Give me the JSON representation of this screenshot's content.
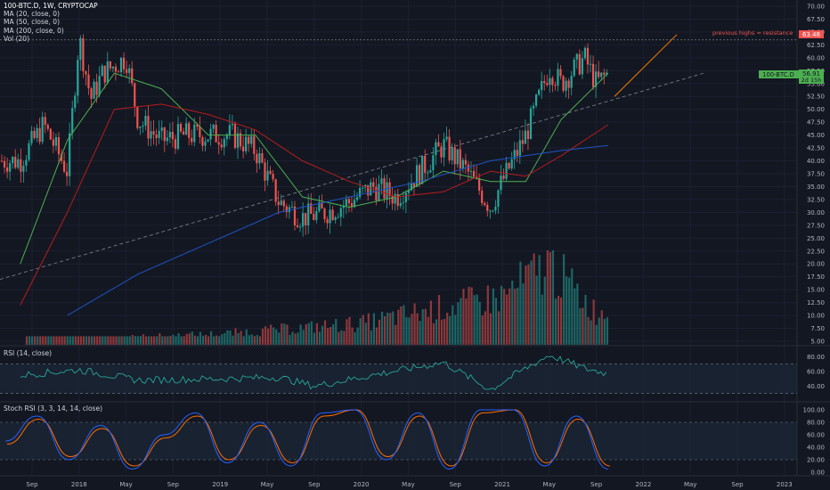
{
  "header": {
    "symbol_line": "100-BTC.D, 1W, CRYPTOCAP",
    "ma20": "MA (20, close, 0)",
    "ma50": "MA (50, close, 0)",
    "ma200": "MA (200, close, 0)",
    "vol": "Vol (20)"
  },
  "rsi_title": "RSI (14, close)",
  "stoch_title": "Stoch RSI (3, 3, 14, 14, close)",
  "annotation": {
    "resistance_text": "previous highs = resistance",
    "resistance_value": "63.48"
  },
  "price_tag": {
    "name": "100-BTC.D",
    "value": "56.91",
    "countdown": "2d 15h"
  },
  "colors": {
    "background": "#131722",
    "up": "#26a69a",
    "down": "#ef5350",
    "ma20": "#4caf50",
    "ma50": "#b71c1c",
    "ma200": "#1e54c6",
    "trendline": "#f57c00",
    "rsi": "#26a69a",
    "stoch_k": "#2962ff",
    "stoch_d": "#ff6d00",
    "resistance": "#ef5350"
  },
  "chart_data": [
    {
      "type": "line",
      "name": "price",
      "x_ticks": [
        "Sep",
        "2018",
        "May",
        "Sep",
        "2019",
        "May",
        "Sep",
        "2020",
        "May",
        "Sep",
        "2021",
        "May",
        "Sep",
        "2022",
        "May",
        "Sep",
        "2023"
      ],
      "y_ticks": [
        "70.00",
        "67.50",
        "65.00",
        "62.50",
        "60.00",
        "57.50",
        "55.00",
        "52.50",
        "50.00",
        "47.50",
        "45.00",
        "42.50",
        "40.00",
        "37.50",
        "35.00",
        "32.50",
        "30.00",
        "27.50",
        "25.00",
        "22.50",
        "20.00",
        "17.50",
        "15.00",
        "12.50",
        "10.00",
        "7.50",
        "5.00"
      ],
      "ylim": [
        5,
        70
      ],
      "series": [
        {
          "name": "100-BTC.D",
          "x": [
            "2017-08",
            "2017-10",
            "2017-12",
            "2018-01",
            "2018-02",
            "2018-03",
            "2018-05",
            "2018-06",
            "2018-08",
            "2018-10",
            "2018-12",
            "2019-02",
            "2019-04",
            "2019-06",
            "2019-08",
            "2019-10",
            "2019-12",
            "2020-02",
            "2020-04",
            "2020-06",
            "2020-08",
            "2020-10",
            "2020-12",
            "2021-01",
            "2021-03",
            "2021-05",
            "2021-06",
            "2021-08",
            "2021-09",
            "2021-10"
          ],
          "values": [
            40,
            47,
            38,
            64,
            52,
            57,
            60,
            48,
            44,
            45,
            45,
            45,
            42,
            32,
            29,
            30,
            32,
            35,
            33,
            38,
            43,
            38,
            31,
            36,
            45,
            58,
            55,
            60,
            55,
            57
          ]
        },
        {
          "name": "MA (20, close, 0)",
          "x": [
            "2017-08",
            "2017-12",
            "2018-04",
            "2018-08",
            "2018-12",
            "2019-04",
            "2019-08",
            "2019-12",
            "2020-04",
            "2020-08",
            "2020-12",
            "2021-03",
            "2021-06",
            "2021-10"
          ],
          "values": [
            20,
            44,
            57,
            54,
            45,
            45,
            33,
            31,
            33,
            38,
            36,
            36,
            48,
            57
          ]
        },
        {
          "name": "MA (50, close, 0)",
          "x": [
            "2017-08",
            "2017-12",
            "2018-04",
            "2018-08",
            "2018-12",
            "2019-04",
            "2019-08",
            "2019-12",
            "2020-04",
            "2020-08",
            "2020-12",
            "2021-03",
            "2021-06",
            "2021-10"
          ],
          "values": [
            12,
            30,
            50,
            51,
            49,
            46,
            40,
            36,
            33,
            34,
            38,
            37,
            41,
            47
          ]
        },
        {
          "name": "MA (200, close, 0)",
          "x": [
            "2017-12",
            "2018-06",
            "2018-12",
            "2019-06",
            "2019-12",
            "2020-06",
            "2020-12",
            "2021-06",
            "2021-10"
          ],
          "values": [
            10,
            18,
            24,
            30,
            33,
            36,
            40,
            42,
            43
          ]
        }
      ],
      "annotations": [
        "previous highs = resistance",
        "63.48"
      ]
    },
    {
      "type": "bar",
      "name": "Vol (20)",
      "x": [
        "2018",
        "2019",
        "2020",
        "2021-01",
        "2021-05",
        "2021-09"
      ],
      "values": [
        0.5,
        1.0,
        2.0,
        4.5,
        7.5,
        3.0
      ]
    },
    {
      "type": "line",
      "name": "RSI (14, close)",
      "y_ticks": [
        "80.00",
        "60.00",
        "40.00"
      ],
      "ylim": [
        20,
        90
      ],
      "x": [
        "2017-08",
        "2018-01",
        "2018-06",
        "2019-01",
        "2019-06",
        "2019-09",
        "2020-02",
        "2020-08",
        "2020-12",
        "2021-02",
        "2021-05",
        "2021-08",
        "2021-10"
      ],
      "values": [
        55,
        62,
        48,
        50,
        52,
        40,
        55,
        72,
        35,
        55,
        82,
        64,
        57
      ]
    },
    {
      "type": "line",
      "name": "Stoch RSI (3, 3, 14, 14, close)",
      "y_ticks": [
        "100.00",
        "80.00",
        "60.00",
        "40.00",
        "20.00",
        "0.00"
      ],
      "ylim": [
        0,
        100
      ],
      "series": [
        {
          "name": "K",
          "values": [
            50,
            90,
            20,
            75,
            5,
            60,
            95,
            15,
            80,
            10,
            95,
            100,
            20,
            95,
            5,
            100,
            100,
            10,
            90,
            5
          ]
        },
        {
          "name": "D",
          "values": [
            45,
            85,
            25,
            70,
            10,
            55,
            90,
            20,
            75,
            15,
            90,
            100,
            25,
            90,
            10,
            95,
            100,
            15,
            85,
            10
          ]
        }
      ]
    }
  ]
}
